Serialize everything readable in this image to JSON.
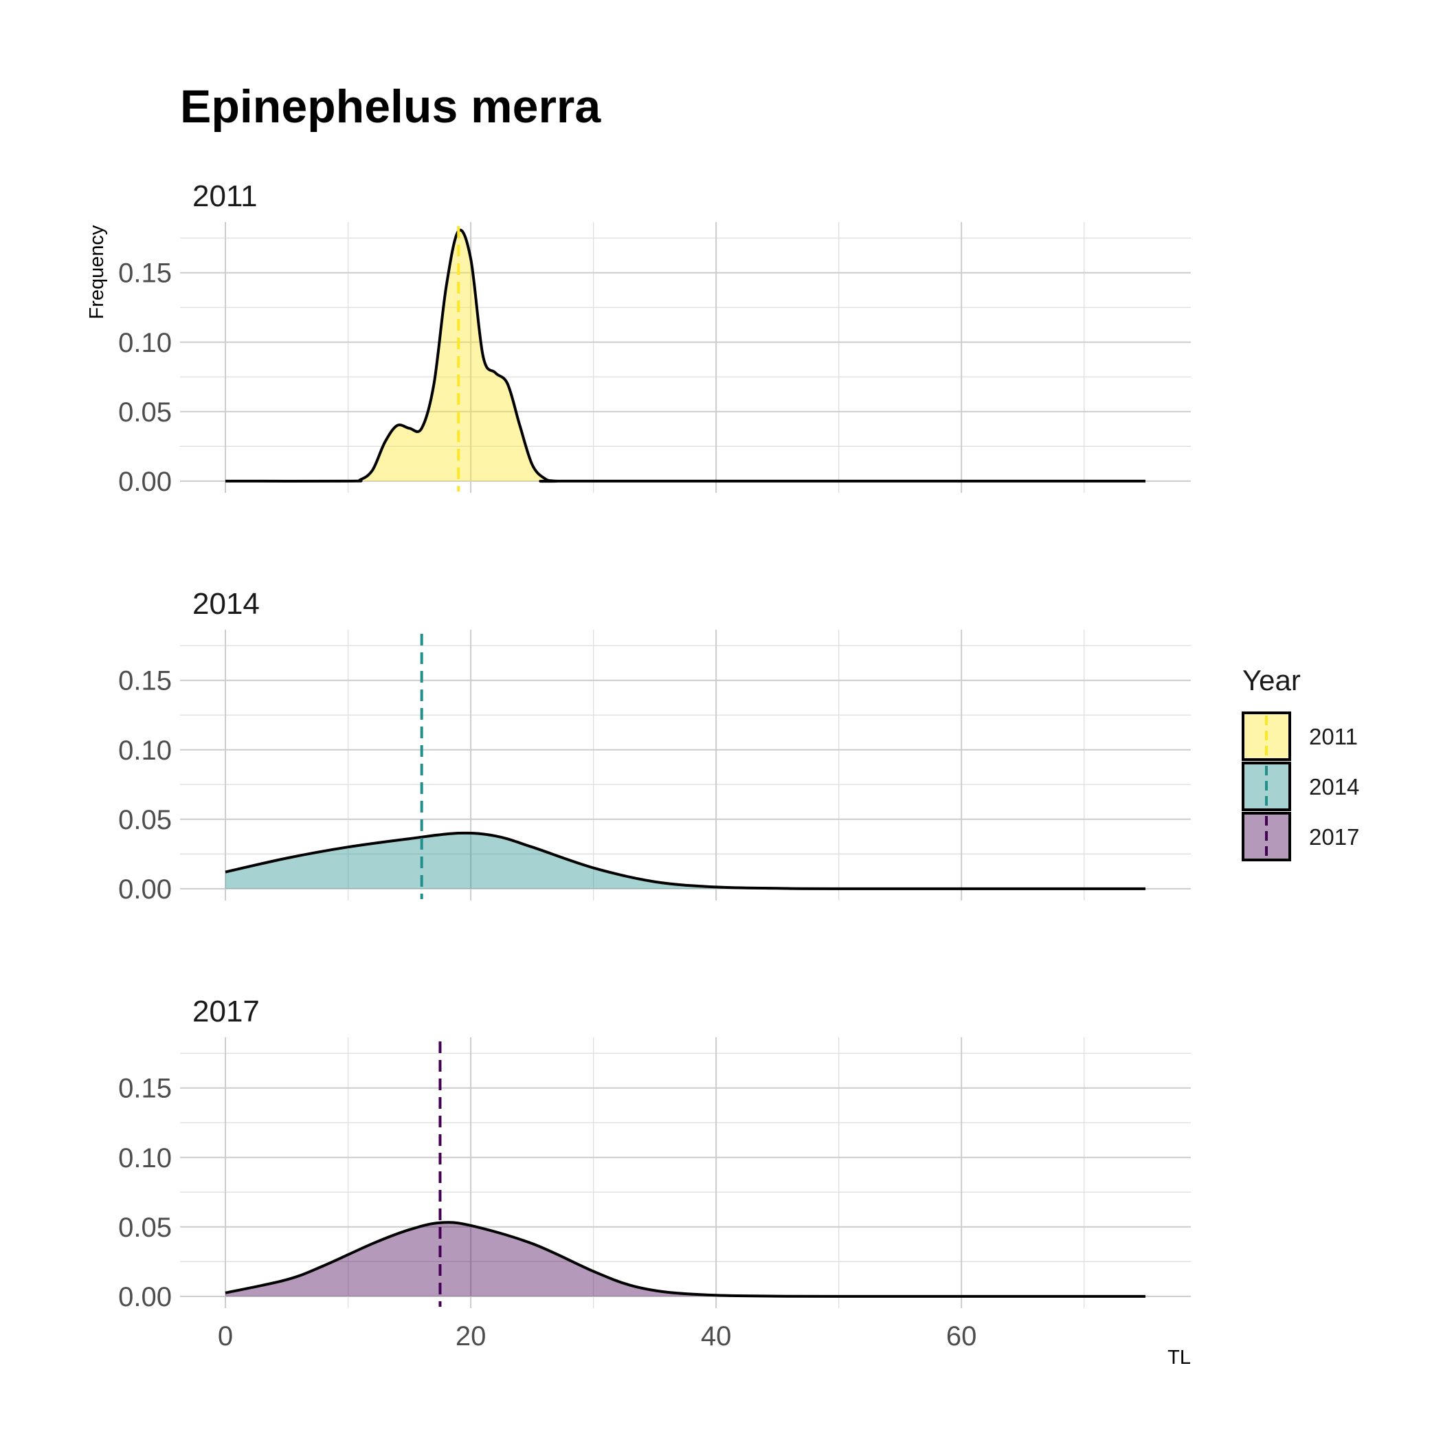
{
  "chart_data": {
    "type": "area",
    "title": "Epinephelus merra",
    "xlabel": "TL",
    "ylabel": "Frequency",
    "xlim": [
      -3.7,
      78.7
    ],
    "ylim": [
      -0.0085,
      0.1865
    ],
    "x_ticks": [
      0,
      20,
      40,
      60
    ],
    "x_minor": [
      10,
      30,
      50,
      70
    ],
    "y_ticks": [
      0.0,
      0.05,
      0.1,
      0.15
    ],
    "y_tick_labels": [
      "0.00",
      "0.05",
      "0.10",
      "0.15"
    ],
    "y_minor": [
      0.025,
      0.075,
      0.125,
      0.175
    ],
    "grid": true,
    "legend": {
      "title": "Year",
      "position": "right"
    },
    "facets": [
      {
        "label": "2011",
        "fill": "#FDE725",
        "line": "#FDE725",
        "mean": 19.0,
        "points": [
          [
            0,
            0
          ],
          [
            10,
            0
          ],
          [
            11,
            0.001
          ],
          [
            12,
            0.008
          ],
          [
            13,
            0.028
          ],
          [
            14,
            0.04
          ],
          [
            15,
            0.038
          ],
          [
            16,
            0.038
          ],
          [
            17,
            0.07
          ],
          [
            18,
            0.14
          ],
          [
            19,
            0.18
          ],
          [
            20,
            0.16
          ],
          [
            21,
            0.09
          ],
          [
            22,
            0.078
          ],
          [
            23,
            0.07
          ],
          [
            24,
            0.04
          ],
          [
            25,
            0.012
          ],
          [
            26,
            0.002
          ],
          [
            27,
            0
          ],
          [
            30,
            0
          ],
          [
            75,
            0
          ]
        ]
      },
      {
        "label": "2014",
        "fill": "#21908C",
        "line": "#21908C",
        "mean": 16.0,
        "points": [
          [
            0,
            0.012
          ],
          [
            5,
            0.022
          ],
          [
            10,
            0.03
          ],
          [
            15,
            0.036
          ],
          [
            19,
            0.04
          ],
          [
            22,
            0.038
          ],
          [
            25,
            0.03
          ],
          [
            30,
            0.015
          ],
          [
            35,
            0.005
          ],
          [
            40,
            0.0012
          ],
          [
            45,
            0.0003
          ],
          [
            50,
            0
          ],
          [
            75,
            0
          ]
        ]
      },
      {
        "label": "2017",
        "fill": "#440154",
        "line": "#440154",
        "mean": 17.5,
        "points": [
          [
            0,
            0.0025
          ],
          [
            5,
            0.012
          ],
          [
            8,
            0.022
          ],
          [
            12,
            0.038
          ],
          [
            15,
            0.048
          ],
          [
            17.5,
            0.053
          ],
          [
            20,
            0.051
          ],
          [
            25,
            0.038
          ],
          [
            30,
            0.018
          ],
          [
            33,
            0.008
          ],
          [
            36,
            0.003
          ],
          [
            40,
            0.0008
          ],
          [
            45,
            0.0001
          ],
          [
            50,
            0
          ],
          [
            75,
            0
          ]
        ]
      }
    ]
  }
}
